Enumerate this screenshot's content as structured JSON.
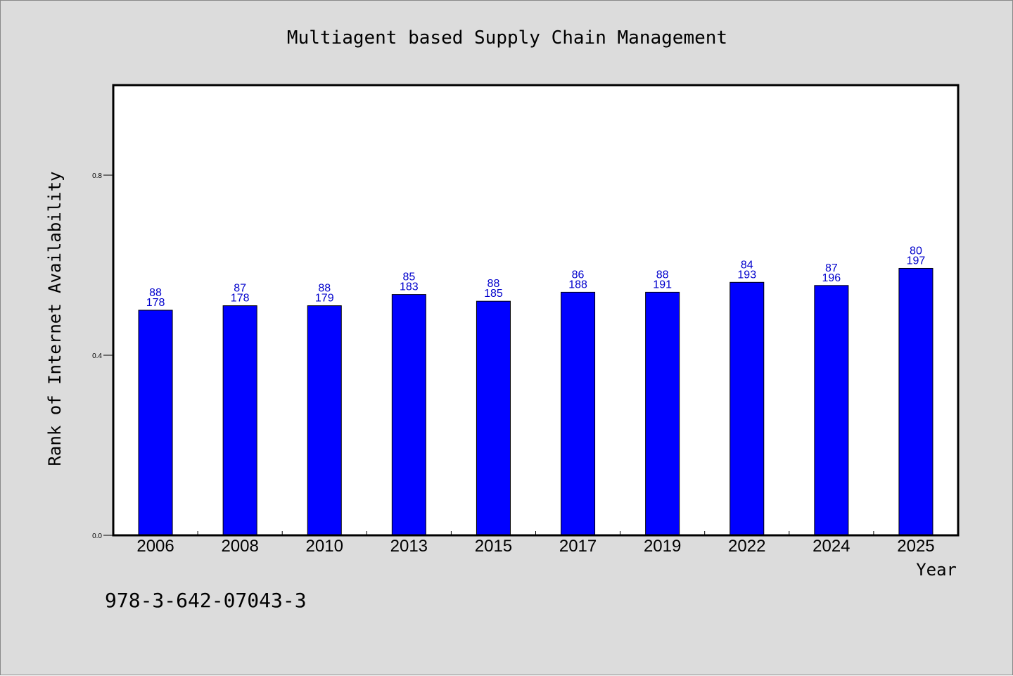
{
  "title": "Multiagent based Supply Chain Management",
  "footer": "978-3-642-07043-3",
  "chart_data": {
    "type": "bar",
    "title": "Multiagent based Supply Chain Management",
    "xlabel": "Year",
    "ylabel": "Rank of Internet Availability",
    "categories": [
      "2006",
      "2008",
      "2010",
      "2013",
      "2015",
      "2017",
      "2019",
      "2022",
      "2024",
      "2025"
    ],
    "values": [
      0.5,
      0.51,
      0.51,
      0.535,
      0.52,
      0.54,
      0.54,
      0.562,
      0.555,
      0.593
    ],
    "label_top": [
      "88",
      "87",
      "88",
      "85",
      "88",
      "86",
      "88",
      "84",
      "87",
      "80"
    ],
    "label_bottom": [
      "178",
      "178",
      "179",
      "183",
      "185",
      "188",
      "191",
      "193",
      "196",
      "197"
    ],
    "ylim": [
      0,
      1.0
    ],
    "yticks": [
      0.0,
      0.4,
      0.8
    ],
    "ytick_labels": [
      "0.0",
      "0.4",
      "0.8"
    ],
    "grid": false,
    "legend": "none",
    "bar_color": "#0000ff",
    "label_color": "#0000cc",
    "background_color": "#dcdcdc",
    "plot_background": "#ffffff"
  }
}
